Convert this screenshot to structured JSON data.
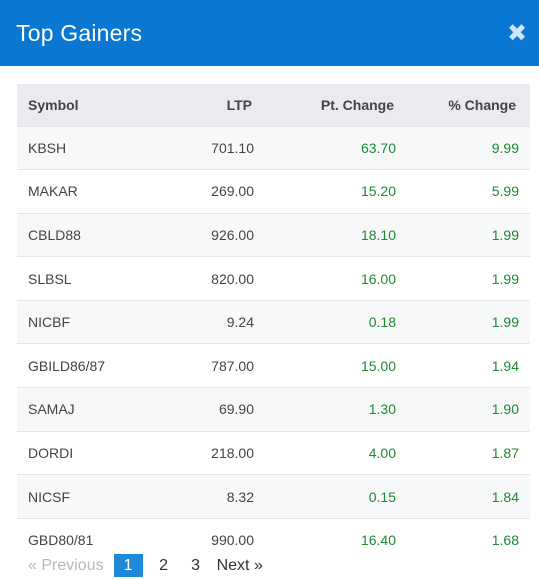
{
  "modal": {
    "title": "Top Gainers",
    "close_symbol": "✖"
  },
  "table": {
    "headers": {
      "symbol": "Symbol",
      "ltp": "LTP",
      "pt_change": "Pt. Change",
      "pct_change": "% Change"
    },
    "rows": [
      {
        "symbol": "KBSH",
        "ltp": "701.10",
        "pt_change": "63.70",
        "pct_change": "9.99"
      },
      {
        "symbol": "MAKAR",
        "ltp": "269.00",
        "pt_change": "15.20",
        "pct_change": "5.99"
      },
      {
        "symbol": "CBLD88",
        "ltp": "926.00",
        "pt_change": "18.10",
        "pct_change": "1.99"
      },
      {
        "symbol": "SLBSL",
        "ltp": "820.00",
        "pt_change": "16.00",
        "pct_change": "1.99"
      },
      {
        "symbol": "NICBF",
        "ltp": "9.24",
        "pt_change": "0.18",
        "pct_change": "1.99"
      },
      {
        "symbol": "GBILD86/87",
        "ltp": "787.00",
        "pt_change": "15.00",
        "pct_change": "1.94"
      },
      {
        "symbol": "SAMAJ",
        "ltp": "69.90",
        "pt_change": "1.30",
        "pct_change": "1.90"
      },
      {
        "symbol": "DORDI",
        "ltp": "218.00",
        "pt_change": "4.00",
        "pct_change": "1.87"
      },
      {
        "symbol": "NICSF",
        "ltp": "8.32",
        "pt_change": "0.15",
        "pct_change": "1.84"
      },
      {
        "symbol": "GBD80/81",
        "ltp": "990.00",
        "pt_change": "16.40",
        "pct_change": "1.68"
      }
    ]
  },
  "pagination": {
    "previous": "«  Previous",
    "pages": [
      "1",
      "2",
      "3"
    ],
    "active_page": "1",
    "next": "Next  »"
  },
  "colors": {
    "header_bg": "#0a77d2",
    "positive": "#1d8a33",
    "active_page": "#1d89d8"
  }
}
